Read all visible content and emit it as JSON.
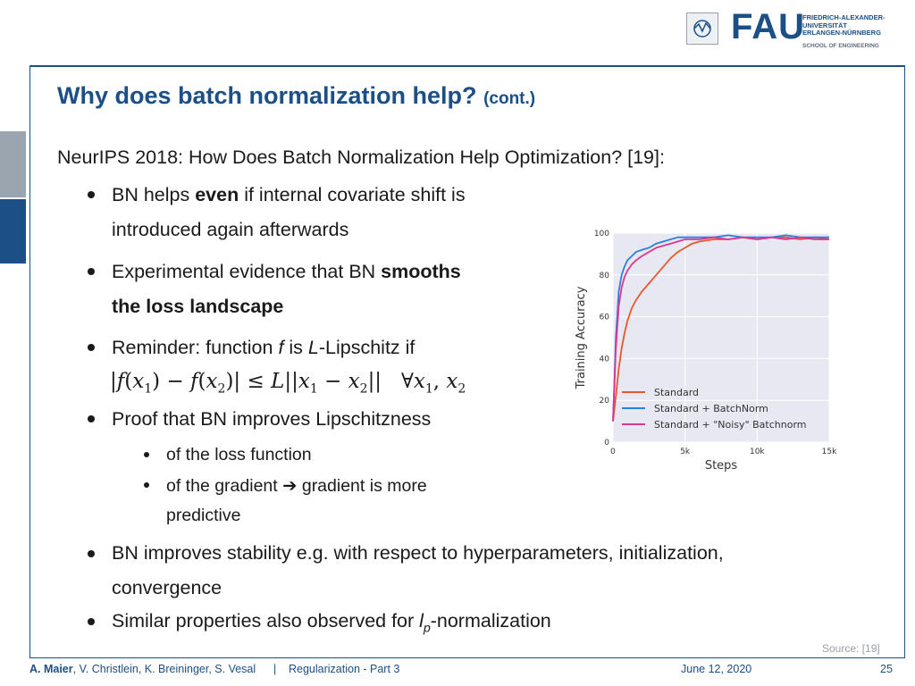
{
  "header": {
    "fau": "FAU",
    "university_lines": [
      "FRIEDRICH-ALEXANDER-",
      "UNIVERSITÄT",
      "ERLANGEN-NÜRNBERG"
    ],
    "school": "SCHOOL OF ENGINEERING"
  },
  "slide": {
    "title": "Why does batch normalization help?",
    "title_sub": "(cont.)",
    "intro": "NeurIPS 2018: How Does Batch Normalization Help Optimization? [19]:",
    "b1_pre": "BN helps ",
    "b1_bold": "even",
    "b1_post": " if internal covariate shift is",
    "b1_line2": "introduced again afterwards",
    "b2_pre": "Experimental evidence that BN ",
    "b2_bold1": "smooths",
    "b2_bold2": "the loss landscape",
    "b3_pre": "Reminder: function ",
    "b3_f": "f",
    "b3_mid": " is ",
    "b3_L": "L",
    "b3_post": "-Lipschitz if",
    "b4": "Proof that BN improves Lipschitzness",
    "b4_s1": "of the loss function",
    "b4_s2": "of the gradient ➔ gradient is more",
    "b4_s2_line2": "predictive",
    "b5": "BN improves stability e.g. with respect to hyperparameters, initialization,",
    "b5_line2": "convergence",
    "b6_pre": "Similar properties also observed for ",
    "b6_l": "l",
    "b6_p": "p",
    "b6_post": "-normalization",
    "source": "Source: [19]"
  },
  "footer": {
    "author_bold": "A. Maier",
    "authors_rest": ", V. Christlein, K. Breininger, S. Vesal",
    "separator": "|",
    "lecture": "Regularization - Part 3",
    "date": "June 12, 2020",
    "page": "25"
  },
  "colors": {
    "brand": "#1b4f85",
    "standard": "#e8572a",
    "batchnorm": "#2b7fe0",
    "noisy": "#e0358f",
    "plot_bg": "#e7e8f2"
  },
  "chart_data": {
    "type": "line",
    "title": "",
    "xlabel": "Steps",
    "ylabel": "Training Accuracy",
    "xlim": [
      0,
      15000
    ],
    "ylim": [
      0,
      100
    ],
    "xticks": [
      0,
      5000,
      10000,
      15000
    ],
    "xtick_labels": [
      "0",
      "5k",
      "10k",
      "15k"
    ],
    "yticks": [
      0,
      20,
      40,
      60,
      80,
      100
    ],
    "ytick_labels": [
      "0",
      "20",
      "40",
      "60",
      "80",
      "100"
    ],
    "grid": true,
    "legend_position": "bottom-right",
    "series": [
      {
        "name": "Standard",
        "color": "#e8572a",
        "x": [
          0,
          200,
          400,
          600,
          800,
          1000,
          1300,
          1600,
          2000,
          2500,
          3000,
          3500,
          4000,
          4500,
          5000,
          5500,
          6000,
          7000,
          8000,
          9000,
          10000,
          11000,
          12000,
          13000,
          14000,
          15000
        ],
        "y": [
          10,
          22,
          35,
          45,
          52,
          58,
          64,
          68,
          72,
          76,
          80,
          84,
          88,
          91,
          93,
          95,
          96,
          97,
          97,
          98,
          97,
          98,
          98,
          97,
          98,
          97
        ]
      },
      {
        "name": "Standard + BatchNorm",
        "color": "#2b7fe0",
        "x": [
          0,
          200,
          400,
          600,
          800,
          1000,
          1300,
          1600,
          2000,
          2500,
          3000,
          3500,
          4000,
          4500,
          5000,
          6000,
          7000,
          8000,
          9000,
          10000,
          11000,
          12000,
          13000,
          14000,
          15000
        ],
        "y": [
          10,
          50,
          72,
          80,
          84,
          87,
          89,
          91,
          92,
          93,
          95,
          96,
          97,
          98,
          98,
          98,
          98,
          99,
          98,
          98,
          98,
          99,
          98,
          98,
          98
        ]
      },
      {
        "name": "Standard + \"Noisy\" Batchnorm",
        "color": "#e0358f",
        "x": [
          0,
          200,
          400,
          600,
          800,
          1000,
          1300,
          1600,
          2000,
          2500,
          3000,
          3500,
          4000,
          4500,
          5000,
          6000,
          7000,
          8000,
          9000,
          10000,
          11000,
          12000,
          13000,
          14000,
          15000
        ],
        "y": [
          10,
          45,
          65,
          74,
          79,
          82,
          85,
          87,
          89,
          91,
          93,
          94,
          95,
          96,
          97,
          97,
          98,
          97,
          98,
          97,
          98,
          97,
          98,
          97,
          97
        ]
      }
    ]
  }
}
